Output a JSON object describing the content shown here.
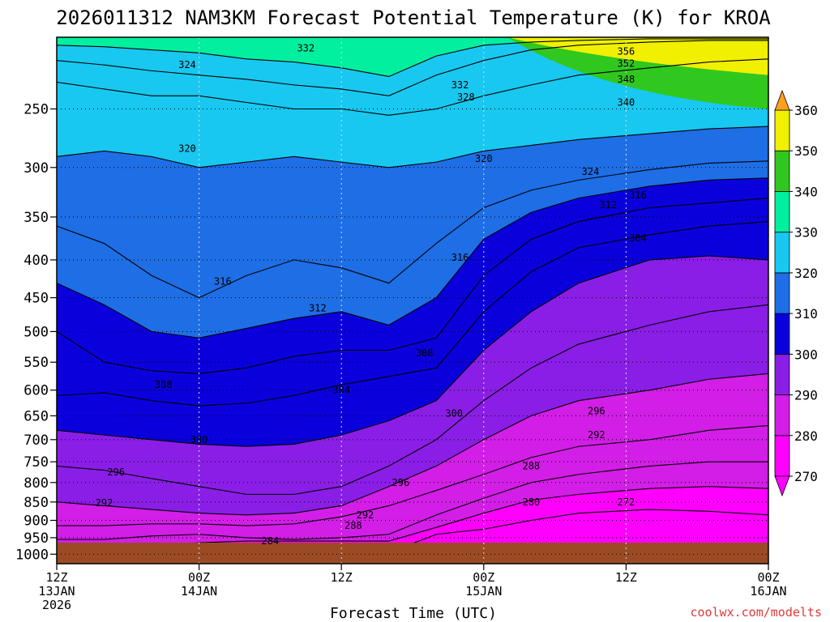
{
  "chart_data": {
    "type": "heatmap",
    "title": "2026011312 NAM3KM Forecast Potential Temperature (K) for KROA",
    "xlabel": "Forecast Time (UTC)",
    "ylabel": "",
    "credit": "coolwx.com/modelts",
    "x_ticks": [
      {
        "hours": 0,
        "lines": [
          "12Z",
          "13JAN",
          "2026"
        ]
      },
      {
        "hours": 12,
        "lines": [
          "00Z",
          "14JAN"
        ]
      },
      {
        "hours": 24,
        "lines": [
          "12Z"
        ]
      },
      {
        "hours": 36,
        "lines": [
          "00Z",
          "15JAN"
        ]
      },
      {
        "hours": 48,
        "lines": [
          "12Z"
        ]
      },
      {
        "hours": 60,
        "lines": [
          "00Z",
          "16JAN"
        ]
      }
    ],
    "x_range_hours": [
      0,
      60
    ],
    "y_ticks": [
      250,
      300,
      350,
      400,
      450,
      500,
      550,
      600,
      650,
      700,
      750,
      800,
      850,
      900,
      950,
      1000
    ],
    "y_range_hPa": [
      200,
      1030
    ],
    "y_scale": "log",
    "surface_pressure_hPa": 960,
    "colorbar": {
      "levels": [
        270,
        280,
        290,
        300,
        310,
        320,
        330,
        340,
        350,
        360
      ],
      "colors": [
        "#ff00ff",
        "#d21ee6",
        "#8a1ee6",
        "#0a00dc",
        "#1e6ee6",
        "#18c8f0",
        "#00f0a0",
        "#30c81e",
        "#f0f000",
        "#ffa01e"
      ],
      "labels": [
        "270",
        "280",
        "290",
        "300",
        "310",
        "320",
        "330",
        "340",
        "350",
        "360"
      ]
    },
    "series": [
      {
        "name": "isentrope_272",
        "theta": 272,
        "pressures": [
          995,
          995,
          995,
          995,
          995,
          995,
          995,
          995,
          940,
          925,
          900,
          880,
          870,
          875,
          885
        ]
      },
      {
        "name": "isentrope_280",
        "theta": 280,
        "pressures": [
          980,
          985,
          975,
          965,
          960,
          960,
          960,
          960,
          920,
          880,
          845,
          830,
          815,
          810,
          815
        ]
      },
      {
        "name": "isentrope_284",
        "theta": 284,
        "pressures": [
          955,
          955,
          945,
          940,
          950,
          955,
          950,
          940,
          885,
          840,
          800,
          780,
          760,
          750,
          750
        ]
      },
      {
        "name": "isentrope_288",
        "theta": 288,
        "pressures": [
          915,
          915,
          910,
          910,
          915,
          910,
          890,
          860,
          820,
          780,
          740,
          715,
          700,
          680,
          670
        ]
      },
      {
        "name": "isentrope_292",
        "theta": 292,
        "pressures": [
          850,
          860,
          870,
          880,
          885,
          880,
          860,
          810,
          760,
          700,
          650,
          620,
          600,
          580,
          570
        ]
      },
      {
        "name": "isentrope_296",
        "theta": 296,
        "pressures": [
          760,
          770,
          790,
          810,
          830,
          830,
          810,
          760,
          700,
          620,
          560,
          520,
          490,
          470,
          460
        ]
      },
      {
        "name": "isentrope_300",
        "theta": 300,
        "pressures": [
          680,
          690,
          700,
          710,
          715,
          710,
          690,
          660,
          620,
          530,
          470,
          430,
          400,
          395,
          400
        ]
      },
      {
        "name": "isentrope_304",
        "theta": 304,
        "pressures": [
          610,
          605,
          620,
          630,
          625,
          610,
          590,
          575,
          560,
          470,
          415,
          385,
          370,
          360,
          355
        ]
      },
      {
        "name": "isentrope_308",
        "theta": 308,
        "pressures": [
          500,
          550,
          565,
          570,
          560,
          540,
          530,
          530,
          510,
          420,
          375,
          355,
          340,
          335,
          330
        ]
      },
      {
        "name": "isentrope_312",
        "theta": 312,
        "pressures": [
          430,
          460,
          500,
          510,
          495,
          480,
          470,
          490,
          450,
          375,
          345,
          330,
          318,
          312,
          310
        ]
      },
      {
        "name": "isentrope_316",
        "theta": 316,
        "pressures": [
          360,
          380,
          420,
          450,
          420,
          400,
          410,
          430,
          380,
          340,
          322,
          312,
          302,
          296,
          294
        ]
      },
      {
        "name": "isentrope_320",
        "theta": 320,
        "pressures": [
          290,
          285,
          290,
          300,
          295,
          290,
          295,
          300,
          295,
          285,
          280,
          275,
          270,
          266,
          264
        ]
      },
      {
        "name": "isentrope_324",
        "theta": 324,
        "pressures": [
          230,
          235,
          240,
          240,
          245,
          250,
          250,
          255,
          250,
          240,
          232,
          225,
          220,
          216,
          214
        ]
      },
      {
        "name": "isentrope_328",
        "theta": 328,
        "pressures": [
          215,
          218,
          222,
          225,
          228,
          232,
          235,
          240,
          225,
          215,
          208,
          205,
          203,
          202,
          202
        ]
      },
      {
        "name": "isentrope_332",
        "theta": 332,
        "pressures": [
          205,
          206,
          208,
          210,
          214,
          216,
          220,
          226,
          212,
          205,
          203,
          202,
          201,
          201,
          201
        ]
      }
    ],
    "series_hours": [
      0,
      4,
      8,
      12,
      16,
      20,
      24,
      28,
      32,
      36,
      40,
      44,
      50,
      55,
      60
    ],
    "contour_labels": [
      {
        "text": "332",
        "hours": 21,
        "hPa": 207
      },
      {
        "text": "324",
        "hours": 11,
        "hPa": 218
      },
      {
        "text": "320",
        "hours": 11,
        "hPa": 283
      },
      {
        "text": "332",
        "hours": 34,
        "hPa": 232
      },
      {
        "text": "328",
        "hours": 34.5,
        "hPa": 241
      },
      {
        "text": "320",
        "hours": 36,
        "hPa": 292
      },
      {
        "text": "324",
        "hours": 45,
        "hPa": 304
      },
      {
        "text": "356",
        "hours": 48,
        "hPa": 209
      },
      {
        "text": "352",
        "hours": 48,
        "hPa": 217
      },
      {
        "text": "348",
        "hours": 48,
        "hPa": 228
      },
      {
        "text": "340",
        "hours": 48,
        "hPa": 245
      },
      {
        "text": "316",
        "hours": 49,
        "hPa": 327
      },
      {
        "text": "312",
        "hours": 46.5,
        "hPa": 337
      },
      {
        "text": "304",
        "hours": 49,
        "hPa": 374
      },
      {
        "text": "316",
        "hours": 34,
        "hPa": 397
      },
      {
        "text": "316",
        "hours": 14,
        "hPa": 428
      },
      {
        "text": "312",
        "hours": 22,
        "hPa": 465
      },
      {
        "text": "308",
        "hours": 31,
        "hPa": 535
      },
      {
        "text": "308",
        "hours": 9,
        "hPa": 590
      },
      {
        "text": "304",
        "hours": 24,
        "hPa": 600
      },
      {
        "text": "300",
        "hours": 33.5,
        "hPa": 645
      },
      {
        "text": "296",
        "hours": 45.5,
        "hPa": 640
      },
      {
        "text": "292",
        "hours": 45.5,
        "hPa": 690
      },
      {
        "text": "300",
        "hours": 12,
        "hPa": 700
      },
      {
        "text": "288",
        "hours": 40,
        "hPa": 760
      },
      {
        "text": "296",
        "hours": 5,
        "hPa": 775
      },
      {
        "text": "296",
        "hours": 29,
        "hPa": 800
      },
      {
        "text": "292",
        "hours": 4,
        "hPa": 852
      },
      {
        "text": "280",
        "hours": 40,
        "hPa": 850
      },
      {
        "text": "272",
        "hours": 48,
        "hPa": 850
      },
      {
        "text": "292",
        "hours": 26,
        "hPa": 885
      },
      {
        "text": "288",
        "hours": 25,
        "hPa": 915
      },
      {
        "text": "284",
        "hours": 18,
        "hPa": 960
      }
    ]
  }
}
